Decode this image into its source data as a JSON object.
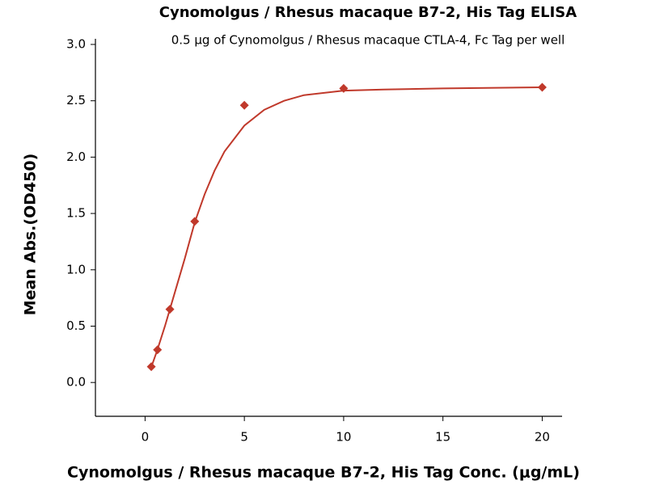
{
  "chart_data": {
    "type": "scatter",
    "title": "Cynomolgus / Rhesus macaque B7-2, His Tag ELISA",
    "subtitle": "0.5 μg of Cynomolgus / Rhesus macaque CTLA-4, Fc Tag per well",
    "x_label": "Cynomolgus / Rhesus macaque B7-2, His Tag Conc. (μg/mL)",
    "y_label": "Mean Abs.(OD450)",
    "xlim": [
      -2.5,
      21
    ],
    "xticks": [
      0,
      5,
      10,
      15,
      20
    ],
    "ylim": [
      -0.3,
      3.05
    ],
    "yticks": [
      {
        "value": 0,
        "label": "0.0"
      },
      0.5,
      {
        "value": 1,
        "label": "1.0"
      },
      1.5,
      {
        "value": 2,
        "label": "2.0"
      },
      2.5,
      {
        "value": 3,
        "label": "3.0"
      }
    ],
    "grid": false,
    "series": [
      {
        "style": "markers",
        "color": "#c0392b",
        "x": [
          0.3125,
          0.625,
          1.25,
          2.5,
          5,
          10,
          20
        ],
        "values": [
          0.14,
          0.29,
          0.65,
          1.43,
          2.46,
          2.61,
          2.62
        ]
      },
      {
        "style": "line",
        "color": "#c0392b",
        "x": [
          0.3,
          0.6,
          1,
          1.5,
          2,
          2.5,
          3,
          3.5,
          4,
          5,
          6,
          7,
          8,
          10,
          12,
          15,
          20
        ],
        "values": [
          0.13,
          0.28,
          0.5,
          0.8,
          1.1,
          1.42,
          1.67,
          1.88,
          2.05,
          2.28,
          2.42,
          2.5,
          2.55,
          2.59,
          2.6,
          2.61,
          2.62
        ]
      }
    ]
  }
}
